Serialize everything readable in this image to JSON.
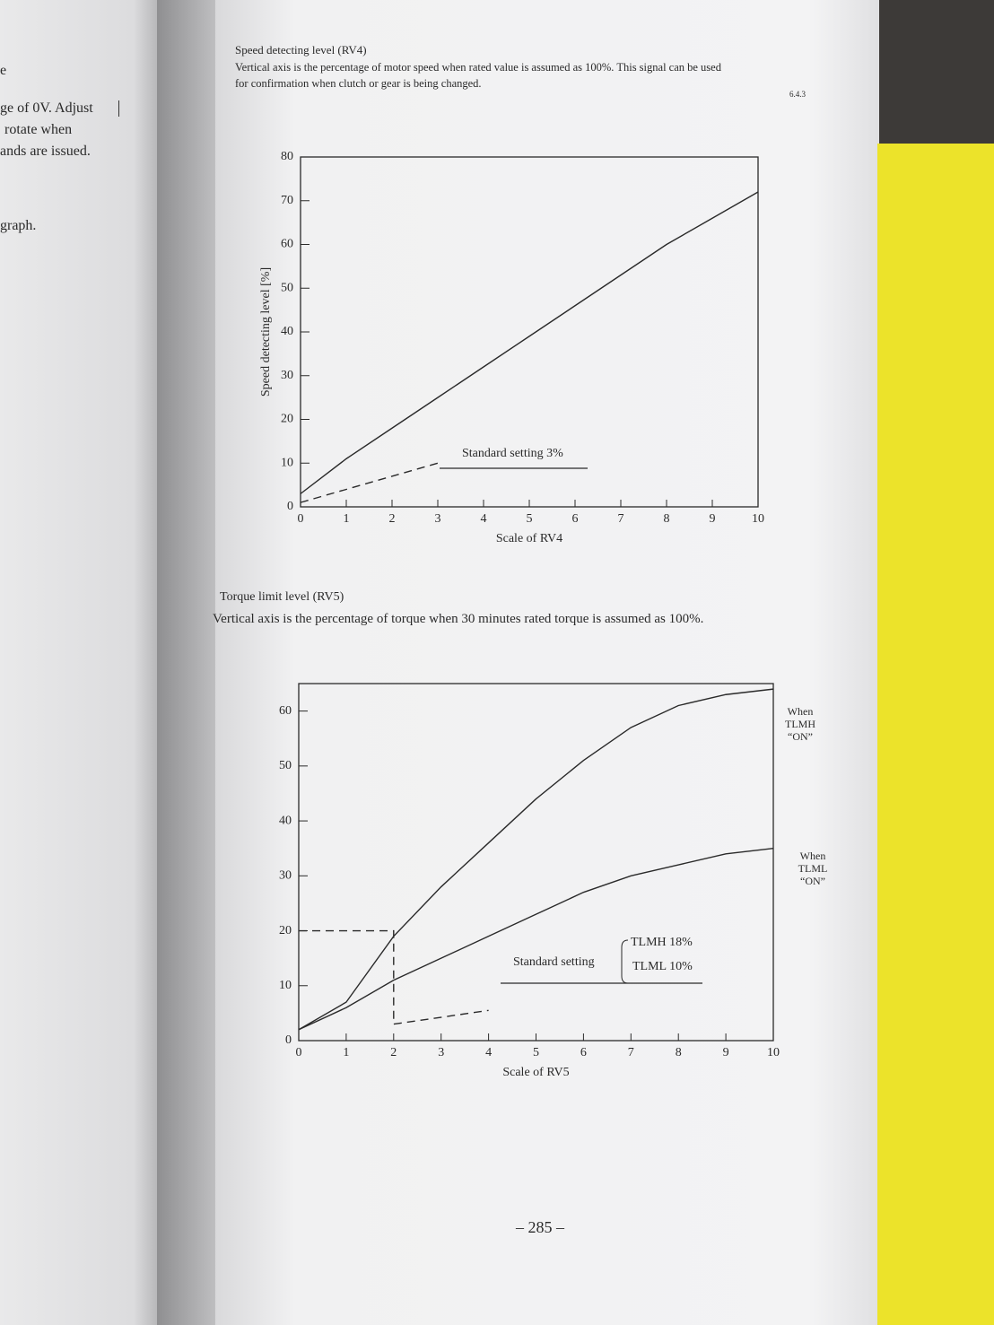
{
  "left_page": {
    "lines": [
      "e",
      "ge of 0V. Adjust",
      "rotate when",
      "ands are issued.",
      "graph."
    ]
  },
  "header": {
    "section_number": "6.4.3",
    "heading": "Speed detecting level (RV4)",
    "text": [
      "Vertical axis is the percentage of motor speed when rated value is assumed as 100%. This signal can be used",
      "for confirmation when clutch or gear is being changed."
    ]
  },
  "section_2": {
    "heading": "Torque limit level (RV5)",
    "text": "Vertical axis is the percentage of torque when 30 minutes rated torque is assumed as 100%."
  },
  "chart_data": [
    {
      "type": "line",
      "ylabel": "Speed detecting level [%]",
      "xlabel": "Scale of RV4",
      "x": [
        0,
        1,
        2,
        3,
        4,
        5,
        6,
        7,
        8,
        9,
        10
      ],
      "xlim": [
        0,
        10
      ],
      "xticks": [
        0,
        1,
        2,
        3,
        4,
        5,
        6,
        7,
        8,
        9,
        10
      ],
      "ylim": [
        0,
        80
      ],
      "yticks": [
        0,
        10,
        20,
        30,
        40,
        50,
        60,
        70,
        80
      ],
      "series": [
        {
          "color": "#2a2a2a",
          "values": [
            3,
            11,
            18,
            25,
            32,
            39,
            46,
            53,
            60,
            66,
            72
          ]
        },
        {
          "color": "#2a2a2a",
          "dash": true,
          "x": [
            0,
            3
          ],
          "values": [
            1,
            10
          ]
        }
      ],
      "annotations": [
        "Standard setting 3%"
      ]
    },
    {
      "type": "line",
      "xlabel": "Scale of RV5",
      "x": [
        0,
        1,
        2,
        3,
        4,
        5,
        6,
        7,
        8,
        9,
        10
      ],
      "xlim": [
        0,
        10
      ],
      "xticks": [
        0,
        1,
        2,
        3,
        4,
        5,
        6,
        7,
        8,
        9,
        10
      ],
      "ylim": [
        0,
        65
      ],
      "yticks": [
        0,
        10,
        20,
        30,
        40,
        50,
        60
      ],
      "series": [
        {
          "name": "When TLMH “ON”",
          "color": "#2a2a2a",
          "values": [
            2,
            7,
            19,
            28,
            36,
            44,
            51,
            57,
            61,
            63,
            64
          ]
        },
        {
          "name": "When TLML “ON”",
          "color": "#2a2a2a",
          "values": [
            2,
            6,
            11,
            15,
            19,
            23,
            27,
            30,
            32,
            34,
            35
          ]
        },
        {
          "color": "#2a2a2a",
          "dash": true,
          "x": [
            0,
            2,
            2,
            4
          ],
          "values": [
            20,
            20,
            3,
            5.5
          ]
        }
      ],
      "annotations": [
        "Standard setting",
        "TLMH 18%",
        "TLML 10%"
      ]
    }
  ],
  "page_number": "– 285 –"
}
